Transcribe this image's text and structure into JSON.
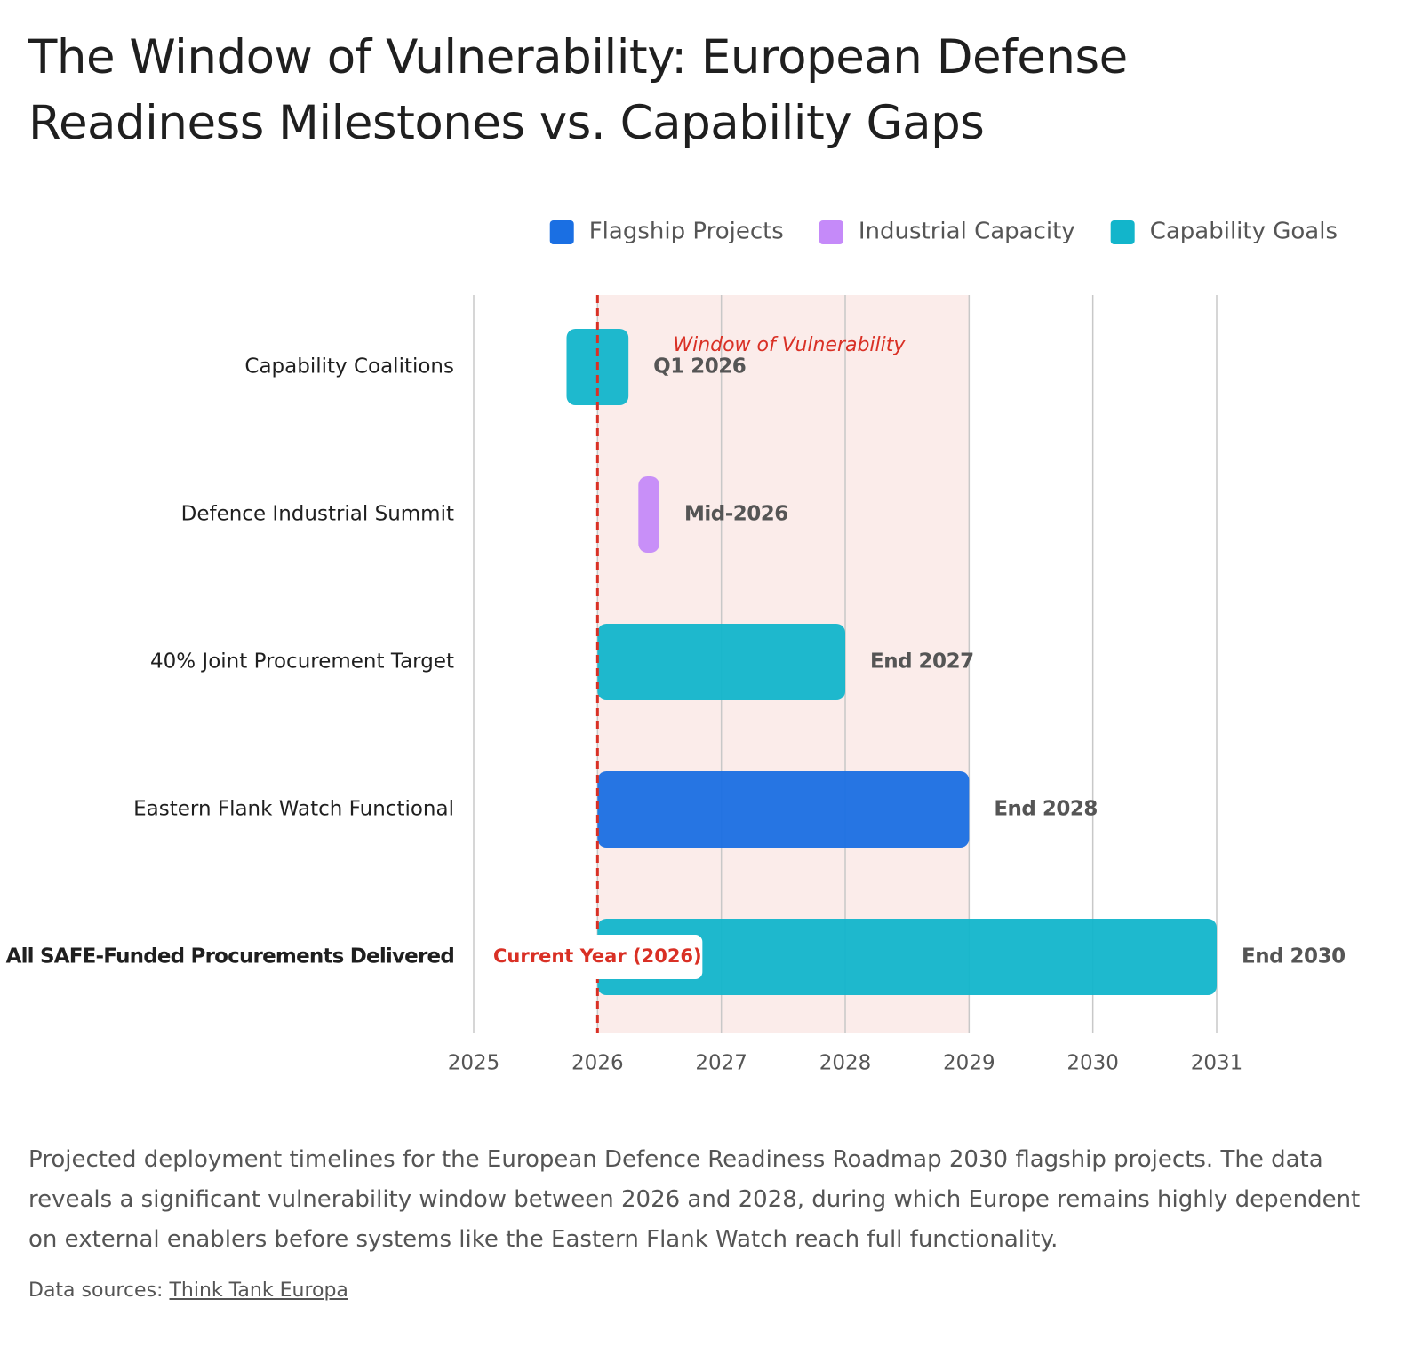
{
  "chart_data": {
    "type": "floating-bar",
    "title": "The Window of Vulnerability: European Defense Readiness Milestones vs. Capability Gaps",
    "categories": [
      "Capability Coalitions",
      "Defence Industrial Summit",
      "40% Joint Procurement Target",
      "Eastern Flank Watch Functional",
      "All SAFE-Funded Procurements Delivered"
    ],
    "emphasized_category": 4,
    "series": [
      {
        "name": "Flagship Projects",
        "color": "#1a6fe3",
        "start": [
          null,
          null,
          null,
          2026,
          null
        ],
        "end": [
          null,
          null,
          null,
          2029,
          null
        ]
      },
      {
        "name": "Industrial Capacity",
        "color": "#c58af9",
        "start": [
          null,
          2026.33,
          null,
          null,
          null
        ],
        "end": [
          null,
          2026.5,
          null,
          null,
          null
        ]
      },
      {
        "name": "Capability Goals",
        "color": "#12b5cb",
        "start": [
          2025.75,
          null,
          2026,
          null,
          2026
        ],
        "end": [
          2026.25,
          null,
          2028,
          null,
          2031
        ]
      }
    ],
    "milestone_labels": [
      "Q1 2026",
      "Mid-2026",
      "End 2027",
      "End 2028",
      "End 2030"
    ],
    "xlim": [
      2025,
      2031
    ],
    "xticks": [
      2025,
      2026,
      2027,
      2028,
      2029,
      2030,
      2031
    ],
    "grid": true,
    "legend": "top-right",
    "shaded_range": {
      "from": 2026,
      "to": 2029,
      "label": "Window of Vulnerability",
      "color": "#fbecea"
    },
    "reference_line": {
      "value": 2026,
      "label": "Current Year (2026)",
      "color": "#d93025"
    },
    "caption": "Projected deployment timelines for the European Defence Readiness Roadmap 2030 flagship projects. The data reveals a significant vulnerability window between 2026 and 2028, during which Europe remains highly dependent on external enablers before systems like the Eastern Flank Watch reach full functionality.",
    "source_prefix": "Data sources:",
    "source_link": "Think Tank Europa"
  }
}
